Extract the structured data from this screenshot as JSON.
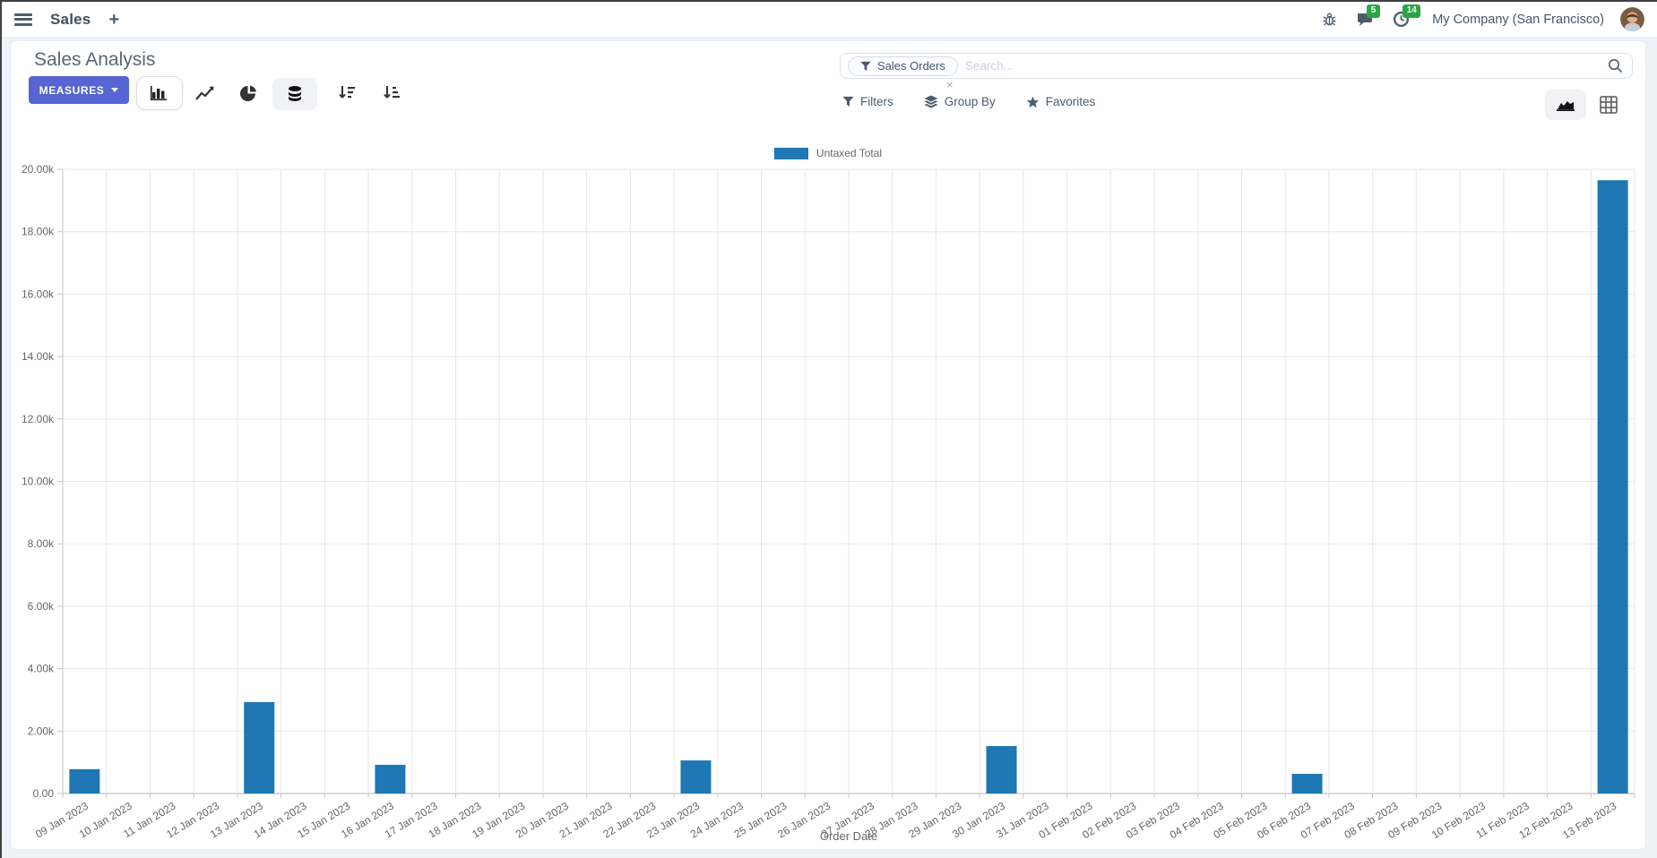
{
  "navbar": {
    "app_name": "Sales",
    "new_tab_label": "+",
    "message_count": "5",
    "activity_count": "14",
    "company": "My Company (San Francisco)"
  },
  "control_panel": {
    "title": "Sales Analysis",
    "measures_label": "MEASURES",
    "filters_label": "Filters",
    "group_by_label": "Group By",
    "favorites_label": "Favorites",
    "search": {
      "facet": "Sales Orders",
      "facet_remove": "×",
      "placeholder": "Search..."
    }
  },
  "chart_data": {
    "type": "bar",
    "title": "",
    "xlabel": "Order Date",
    "ylabel": "",
    "legend_position": "top",
    "grid": true,
    "ylim": [
      0,
      20000
    ],
    "y_ticks": [
      "0.00",
      "2.00k",
      "4.00k",
      "6.00k",
      "8.00k",
      "10.00k",
      "12.00k",
      "14.00k",
      "16.00k",
      "18.00k",
      "20.00k"
    ],
    "categories": [
      "09 Jan 2023",
      "10 Jan 2023",
      "11 Jan 2023",
      "12 Jan 2023",
      "13 Jan 2023",
      "14 Jan 2023",
      "15 Jan 2023",
      "16 Jan 2023",
      "17 Jan 2023",
      "18 Jan 2023",
      "19 Jan 2023",
      "20 Jan 2023",
      "21 Jan 2023",
      "22 Jan 2023",
      "23 Jan 2023",
      "24 Jan 2023",
      "25 Jan 2023",
      "26 Jan 2023",
      "27 Jan 2023",
      "28 Jan 2023",
      "29 Jan 2023",
      "30 Jan 2023",
      "31 Jan 2023",
      "01 Feb 2023",
      "02 Feb 2023",
      "03 Feb 2023",
      "04 Feb 2023",
      "05 Feb 2023",
      "06 Feb 2023",
      "07 Feb 2023",
      "08 Feb 2023",
      "09 Feb 2023",
      "10 Feb 2023",
      "11 Feb 2023",
      "12 Feb 2023",
      "13 Feb 2023"
    ],
    "series": [
      {
        "name": "Untaxed Total",
        "color": "#1f77b4",
        "values": [
          780,
          0,
          0,
          0,
          2930,
          0,
          0,
          920,
          0,
          0,
          0,
          0,
          0,
          0,
          1060,
          0,
          0,
          0,
          0,
          0,
          0,
          1520,
          0,
          0,
          0,
          0,
          0,
          0,
          630,
          0,
          0,
          0,
          0,
          0,
          0,
          19650
        ]
      }
    ]
  },
  "colors": {
    "primary_button": "#5665d2",
    "bar_color": "#1f77b4",
    "badge_green": "#28a745",
    "page_background": "#eef2f8",
    "icon_color": "#4c5d6d"
  }
}
